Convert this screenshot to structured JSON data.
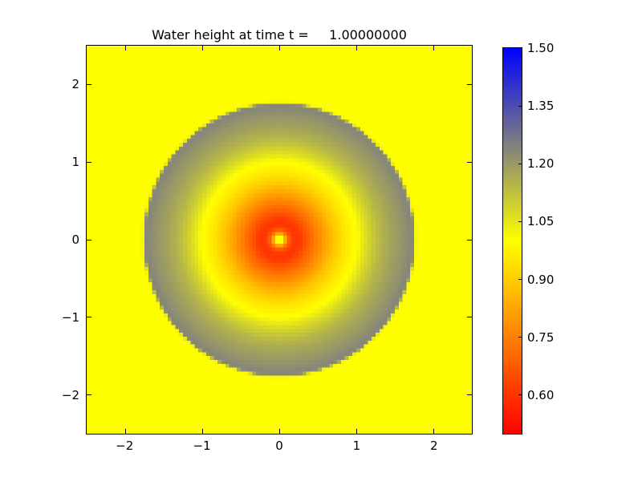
{
  "chart_data": {
    "type": "heatmap",
    "title": "Water height at time t =     1.00000000",
    "xlabel": "",
    "ylabel": "",
    "xlim": [
      -2.5,
      2.5
    ],
    "ylim": [
      -2.5,
      2.5
    ],
    "x_tick_values": [
      -2,
      -1,
      0,
      1,
      2
    ],
    "x_tick_labels": [
      "−2",
      "−1",
      "0",
      "1",
      "2"
    ],
    "y_tick_values": [
      2,
      1,
      0,
      -1,
      -2
    ],
    "y_tick_labels": [
      "2",
      "1",
      "0",
      "−1",
      "−2"
    ],
    "grid_resolution": 100,
    "background_value": 1.0,
    "description": "Radially symmetric water height at t=1: expanding annular crest (h~1.22 gray) near r=1.75 with interior depression (h~0.60 red) around r=0.2, small h~1.0 spot at origin, undisturbed yellow background h=1.0",
    "radial_profile": {
      "r": [
        0.0,
        0.04,
        0.09,
        0.14,
        0.2,
        0.28,
        0.4,
        0.55,
        0.7,
        0.85,
        1.0,
        1.15,
        1.3,
        1.45,
        1.6,
        1.72,
        1.75,
        1.77,
        1.8,
        2.5
      ],
      "h": [
        1.0,
        1.0,
        0.78,
        0.65,
        0.6,
        0.62,
        0.7,
        0.79,
        0.88,
        0.95,
        1.0,
        1.08,
        1.14,
        1.18,
        1.21,
        1.24,
        1.22,
        1.02,
        1.0,
        1.0
      ]
    },
    "colormap_stops": [
      {
        "value": 0.5,
        "color": "#ff0000"
      },
      {
        "value": 1.0,
        "color": "#ffff00"
      },
      {
        "value": 1.5,
        "color": "#0000ff"
      }
    ],
    "colorbar": {
      "min": 0.5,
      "max": 1.5,
      "tick_values": [
        1.5,
        1.35,
        1.2,
        1.05,
        0.9,
        0.75,
        0.6
      ],
      "tick_labels": [
        "1.50",
        "1.35",
        "1.20",
        "1.05",
        "0.90",
        "0.75",
        "0.60"
      ]
    },
    "colors": {
      "axes_frame": "#000000",
      "figure_background": "#ffffff",
      "tick_color": "#000000"
    }
  }
}
